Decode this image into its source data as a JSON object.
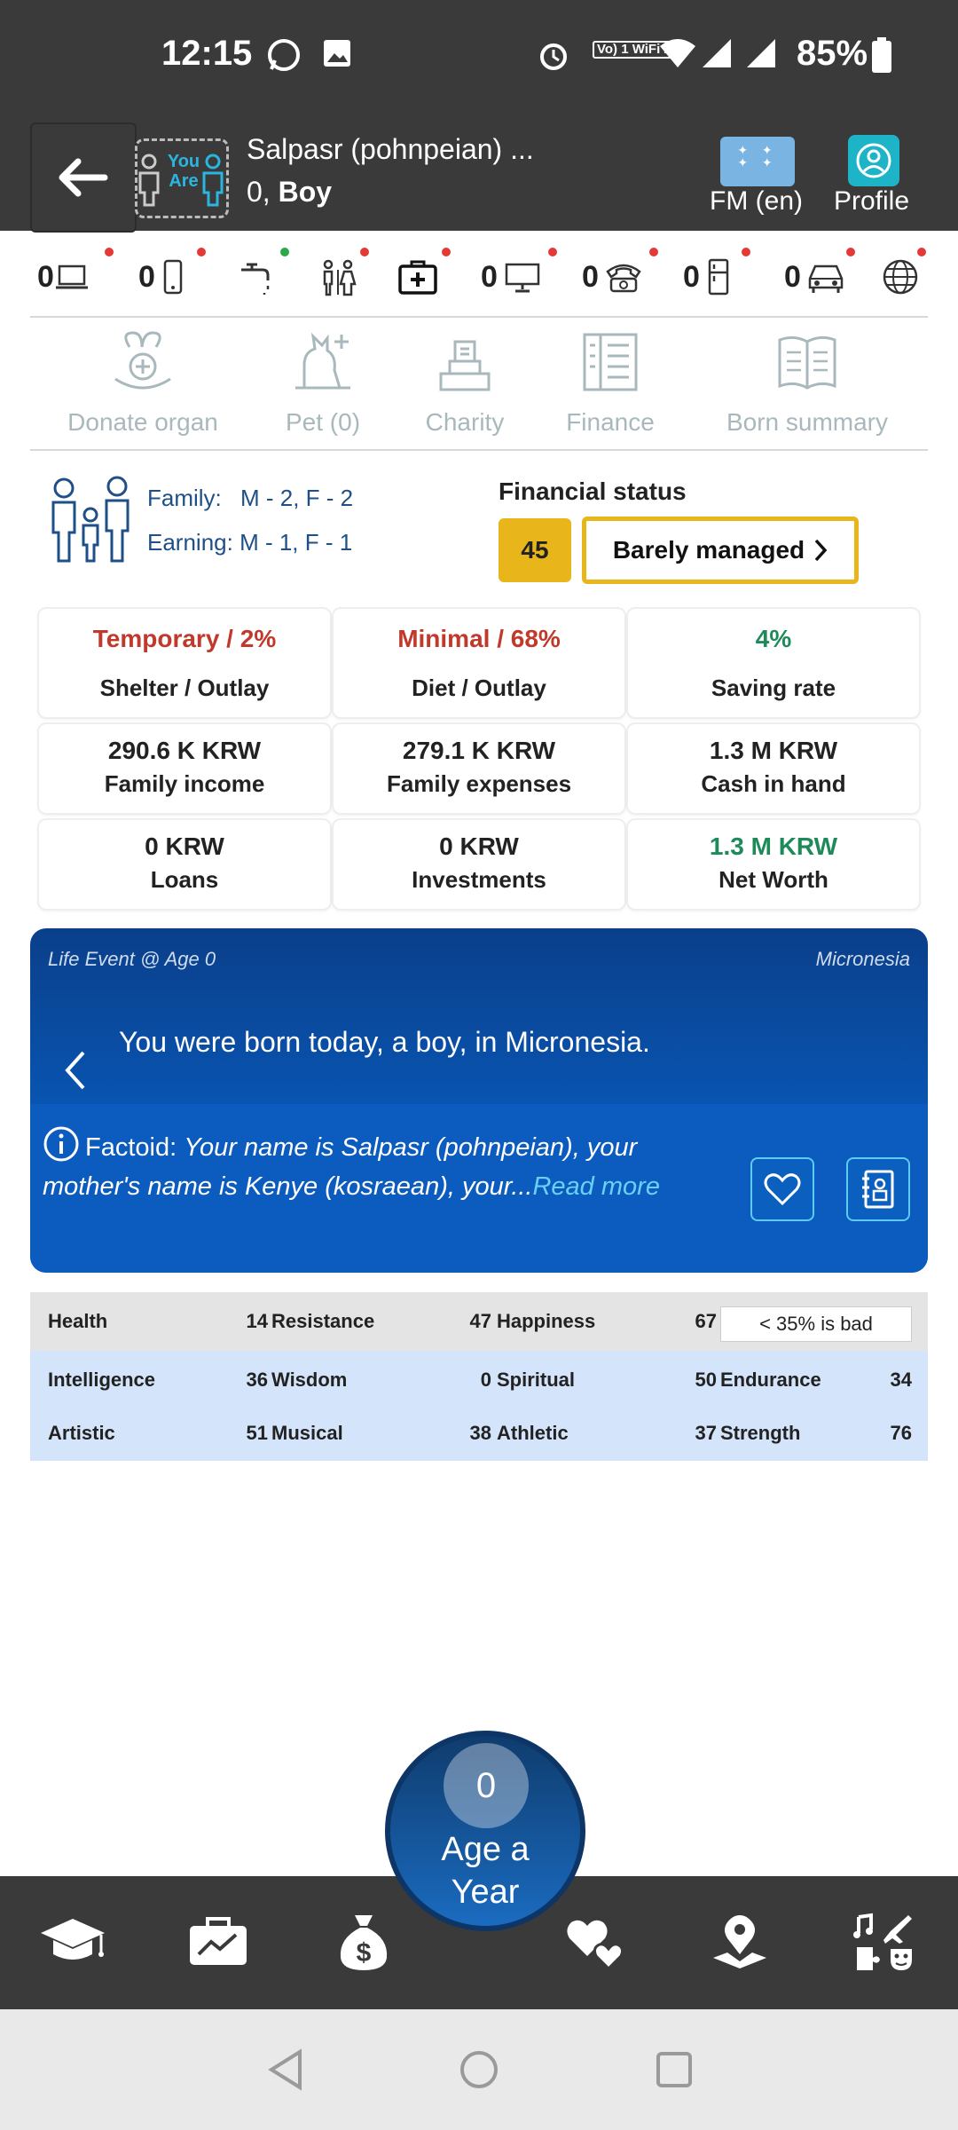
{
  "status_bar": {
    "time": "12:15",
    "wifi_label": "Vo) 1 WiFi 2",
    "battery": "85%"
  },
  "header": {
    "you_are": "You Are",
    "name": "Salpasr (pohnpeian) ...",
    "age": "0,",
    "gender": "Boy",
    "locale_label": "FM (en)",
    "profile_label": "Profile"
  },
  "assets": [
    {
      "count": "0",
      "icon": "laptop-icon",
      "dot": "#e53935"
    },
    {
      "count": "0",
      "icon": "phone-icon",
      "dot": "#e53935"
    },
    {
      "count": "",
      "icon": "faucet-icon",
      "dot": "#2aa84a"
    },
    {
      "count": "",
      "icon": "toilet-icon",
      "dot": "#e53935"
    },
    {
      "count": "",
      "icon": "medkit-icon",
      "dot": "#e53935"
    },
    {
      "count": "0",
      "icon": "computer-icon",
      "dot": "#e53935"
    },
    {
      "count": "0",
      "icon": "telephone-icon",
      "dot": "#e53935"
    },
    {
      "count": "0",
      "icon": "fridge-icon",
      "dot": "#e53935"
    },
    {
      "count": "0",
      "icon": "car-icon",
      "dot": "#e53935"
    },
    {
      "count": "",
      "icon": "globe-icon",
      "dot": "#e53935"
    }
  ],
  "actions": {
    "donate": "Donate organ",
    "pet": "Pet (0)",
    "charity": "Charity",
    "finance": "Finance",
    "born_summary": "Born summary"
  },
  "family": {
    "family_label": "Family:",
    "family_value": "M - 2, F - 2",
    "earning_label": "Earning:",
    "earning_value": "M - 1, F - 1"
  },
  "financial": {
    "title": "Financial status",
    "score": "45",
    "status": "Barely managed"
  },
  "stats": {
    "shelter_value": "Temporary / 2%",
    "shelter_label": "Shelter / Outlay",
    "diet_value": "Minimal / 68%",
    "diet_label": "Diet / Outlay",
    "saving_value": "4%",
    "saving_label": "Saving rate",
    "income_value": "290.6 K KRW",
    "income_label": "Family income",
    "expenses_value": "279.1 K KRW",
    "expenses_label": "Family expenses",
    "cash_value": "1.3 M KRW",
    "cash_label": "Cash in hand",
    "loans_value": "0 KRW",
    "loans_label": "Loans",
    "investments_value": "0 KRW",
    "investments_label": "Investments",
    "networth_value": "1.3 M KRW",
    "networth_label": "Net Worth"
  },
  "event": {
    "title": "Life Event @ Age 0",
    "country": "Micronesia",
    "message": "You were born today, a boy, in Micronesia.",
    "factoid_label": "Factoid:",
    "factoid_text": "Your name is Salpasr (pohnpeian), your mother's name is Kenye (kosraean), your...",
    "read_more": "Read more"
  },
  "attributes": {
    "health_label": "Health",
    "health": "14",
    "resistance_label": "Resistance",
    "resistance": "47",
    "happiness_label": "Happiness",
    "happiness": "67",
    "bad_note": "< 35% is bad",
    "intelligence_label": "Intelligence",
    "intelligence": "36",
    "wisdom_label": "Wisdom",
    "wisdom": "0",
    "spiritual_label": "Spiritual",
    "spiritual": "50",
    "endurance_label": "Endurance",
    "endurance": "34",
    "artistic_label": "Artistic",
    "artistic": "51",
    "musical_label": "Musical",
    "musical": "38",
    "athletic_label": "Athletic",
    "athletic": "37",
    "strength_label": "Strength",
    "strength": "76"
  },
  "age_button": {
    "age": "0",
    "label_line1": "Age a",
    "label_line2": "Year"
  },
  "colors": {
    "header_bg": "#3a3a3a",
    "accent_yellow": "#e8b51a",
    "warn_red": "#c0392b",
    "good_green": "#1e8a5a",
    "event_blue": "#0956b4"
  }
}
